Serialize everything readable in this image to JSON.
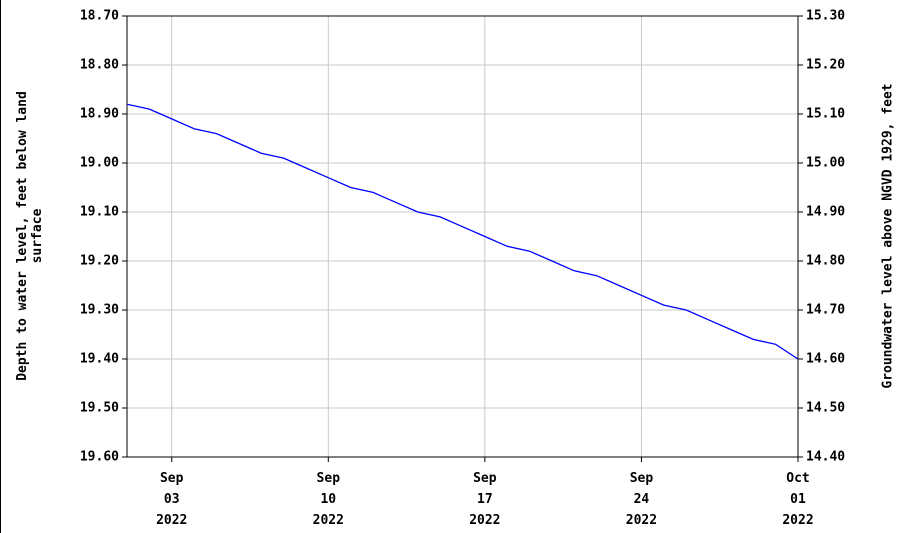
{
  "chart_data": {
    "type": "line",
    "ylabel": "Depth to water level, feet below land surface",
    "y2label": "Groundwater level above NGVD 1929, feet",
    "x": [
      "2022-09-01",
      "2022-09-02",
      "2022-09-03",
      "2022-09-04",
      "2022-09-05",
      "2022-09-06",
      "2022-09-07",
      "2022-09-08",
      "2022-09-09",
      "2022-09-10",
      "2022-09-11",
      "2022-09-12",
      "2022-09-13",
      "2022-09-14",
      "2022-09-15",
      "2022-09-16",
      "2022-09-17",
      "2022-09-18",
      "2022-09-19",
      "2022-09-20",
      "2022-09-21",
      "2022-09-22",
      "2022-09-23",
      "2022-09-24",
      "2022-09-25",
      "2022-09-26",
      "2022-09-27",
      "2022-09-28",
      "2022-09-29",
      "2022-09-30",
      "2022-10-01"
    ],
    "series": [
      {
        "color": "#0000ff",
        "values": [
          18.88,
          18.89,
          18.91,
          18.93,
          18.94,
          18.96,
          18.98,
          18.99,
          19.01,
          19.03,
          19.05,
          19.06,
          19.08,
          19.1,
          19.11,
          19.13,
          19.15,
          19.17,
          19.18,
          19.2,
          19.22,
          19.23,
          19.25,
          19.27,
          19.29,
          19.3,
          19.32,
          19.34,
          19.36,
          19.37,
          19.4
        ]
      }
    ],
    "xlim": [
      "2022-09-01",
      "2022-10-01"
    ],
    "xticks": [
      {
        "value": "2022-09-03",
        "label": "Sep 03 2022"
      },
      {
        "value": "2022-09-10",
        "label": "Sep 10 2022"
      },
      {
        "value": "2022-09-17",
        "label": "Sep 17 2022"
      },
      {
        "value": "2022-09-24",
        "label": "Sep 24 2022"
      },
      {
        "value": "2022-10-01",
        "label": "Oct 01 2022"
      }
    ],
    "ylim": [
      18.7,
      19.6
    ],
    "y_inverted": true,
    "yticks": [
      {
        "value": 18.7,
        "label": "18.70"
      },
      {
        "value": 18.8,
        "label": "18.80"
      },
      {
        "value": 18.9,
        "label": "18.90"
      },
      {
        "value": 19.0,
        "label": "19.00"
      },
      {
        "value": 19.1,
        "label": "19.10"
      },
      {
        "value": 19.2,
        "label": "19.20"
      },
      {
        "value": 19.3,
        "label": "19.30"
      },
      {
        "value": 19.4,
        "label": "19.40"
      },
      {
        "value": 19.5,
        "label": "19.50"
      },
      {
        "value": 19.6,
        "label": "19.60"
      }
    ],
    "y2lim": [
      14.4,
      15.3
    ],
    "y2ticks": [
      {
        "value": 15.3,
        "label": "15.30"
      },
      {
        "value": 15.2,
        "label": "15.20"
      },
      {
        "value": 15.1,
        "label": "15.10"
      },
      {
        "value": 15.0,
        "label": "15.00"
      },
      {
        "value": 14.9,
        "label": "14.90"
      },
      {
        "value": 14.8,
        "label": "14.80"
      },
      {
        "value": 14.7,
        "label": "14.70"
      },
      {
        "value": 14.6,
        "label": "14.60"
      },
      {
        "value": 14.5,
        "label": "14.50"
      },
      {
        "value": 14.4,
        "label": "14.40"
      }
    ],
    "grid": true
  }
}
